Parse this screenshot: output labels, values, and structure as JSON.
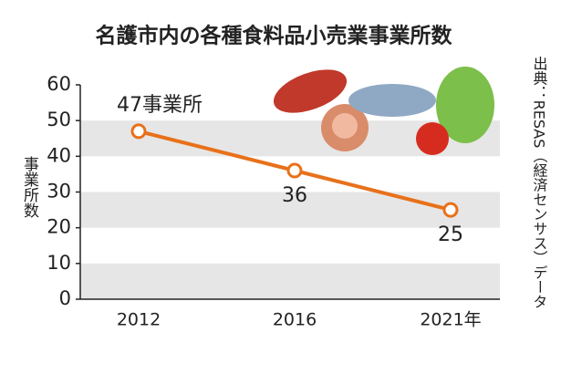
{
  "chart_data": {
    "type": "line",
    "title": "名護市内の各種食料品小売業事業所数",
    "y_label": "事業所数",
    "source": "出典：RESAS（経済センサス）データ",
    "categories": [
      "2012",
      "2016",
      "2021年"
    ],
    "values": [
      47,
      36,
      25
    ],
    "value_labels": [
      "47事業所",
      "36",
      "25"
    ],
    "color": "#e8711a",
    "ylim": [
      0,
      60
    ],
    "yticks": [
      0,
      10,
      20,
      30,
      40,
      50,
      60
    ],
    "band_color": "#e6e6e6"
  }
}
